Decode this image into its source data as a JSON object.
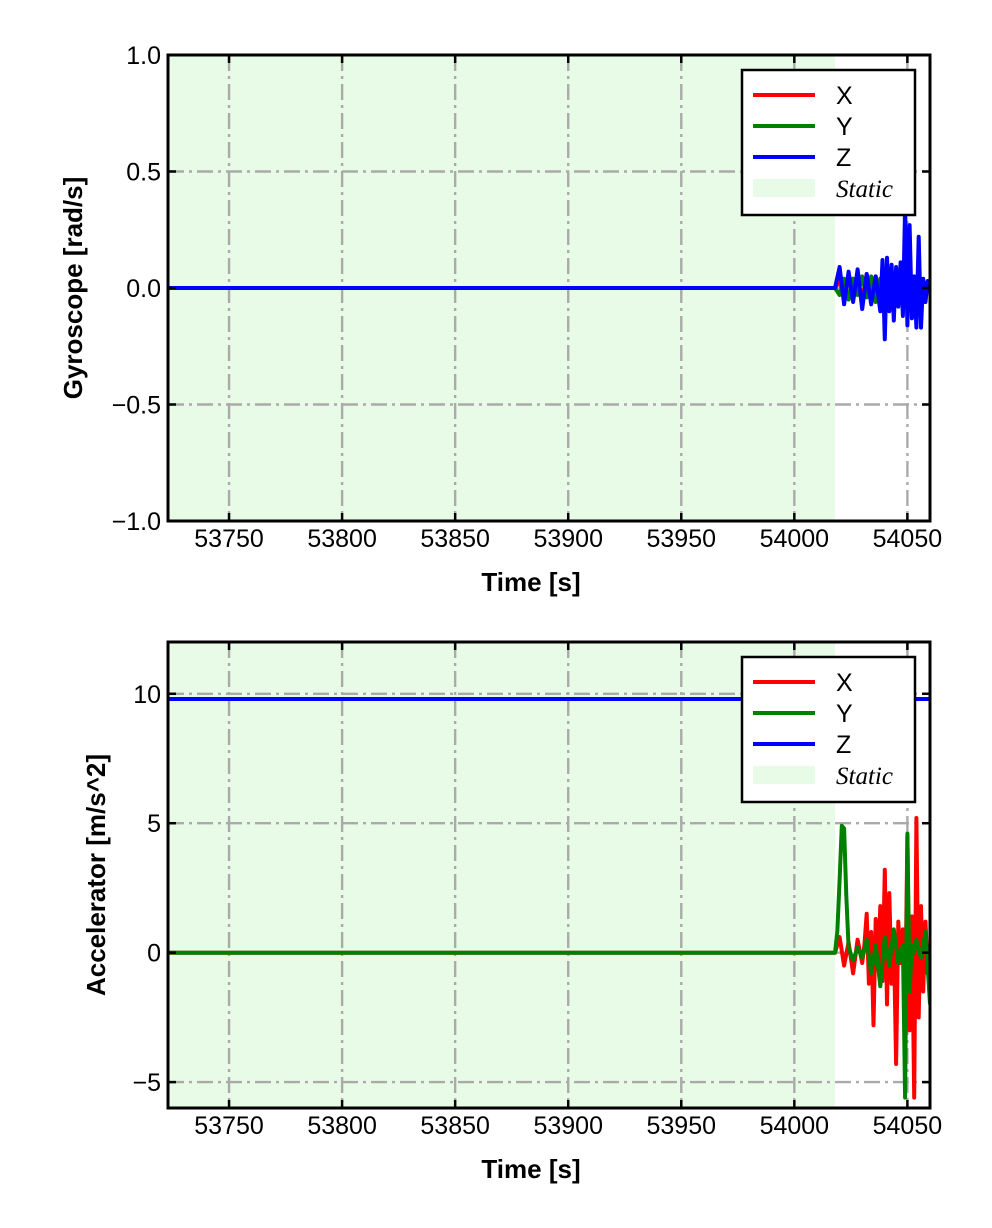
{
  "chart_data": [
    {
      "type": "line",
      "ylabel": "Gyroscope [rad/s]",
      "xlabel": "Time [s]",
      "xlim": [
        53723,
        54060
      ],
      "ylim": [
        -1.0,
        1.0
      ],
      "xticks": [
        53750,
        53800,
        53850,
        53900,
        53950,
        54000,
        54050
      ],
      "xtick_labels": [
        "53750",
        "53800",
        "53850",
        "53900",
        "53950",
        "54000",
        "54050"
      ],
      "yticks": [
        -1.0,
        -0.5,
        0.0,
        0.5,
        1.0
      ],
      "ytick_labels": [
        "−1.0",
        "−0.5",
        "0.0",
        "0.5",
        "1.0"
      ],
      "grid": true,
      "legend_position": "top-right",
      "static_region": [
        53723,
        54018
      ],
      "static_color": "#e8fbe6",
      "legend": [
        {
          "label": "X",
          "color": "#ff0000",
          "kind": "line"
        },
        {
          "label": "Y",
          "color": "#008000",
          "kind": "line"
        },
        {
          "label": "Z",
          "color": "#0000ff",
          "kind": "line"
        },
        {
          "label": "Static",
          "color": "#e8fbe6",
          "kind": "patch"
        }
      ],
      "series": [
        {
          "name": "X",
          "color": "#ff0000",
          "x": [
            53723,
            54018,
            54020,
            54022,
            54024,
            54026,
            54028,
            54030,
            54032,
            54034,
            54036,
            54038,
            54040,
            54042,
            54044,
            54046,
            54048,
            54050,
            54052,
            54054,
            54056,
            54058,
            54060
          ],
          "y": [
            0.0,
            0.0,
            0.03,
            -0.04,
            0.05,
            -0.05,
            0.04,
            -0.05,
            0.06,
            -0.04,
            0.05,
            -0.06,
            0.04,
            -0.05,
            0.06,
            -0.05,
            0.04,
            -0.04,
            0.03,
            -0.03,
            0.02,
            -0.02,
            0.0
          ]
        },
        {
          "name": "Y",
          "color": "#008000",
          "x": [
            53723,
            54018,
            54020,
            54022,
            54024,
            54026,
            54028,
            54030,
            54032,
            54034,
            54036,
            54038,
            54040,
            54042,
            54044,
            54046,
            54048,
            54050,
            54052,
            54054,
            54056,
            54058,
            54060
          ],
          "y": [
            0.0,
            0.0,
            -0.03,
            0.04,
            -0.05,
            0.04,
            -0.03,
            0.05,
            -0.04,
            0.05,
            -0.06,
            0.04,
            -0.05,
            0.05,
            -0.04,
            0.06,
            -0.05,
            0.04,
            -0.04,
            0.03,
            -0.03,
            0.02,
            0.0
          ]
        },
        {
          "name": "Z",
          "color": "#0000ff",
          "x": [
            53723,
            54018,
            54020,
            54022,
            54024,
            54026,
            54028,
            54030,
            54032,
            54034,
            54036,
            54038,
            54039,
            54040,
            54041,
            54042,
            54043,
            54044,
            54045,
            54046,
            54047,
            54048,
            54049,
            54050,
            54051,
            54052,
            54053,
            54054,
            54055,
            54056,
            54057,
            54058,
            54059,
            54060
          ],
          "y": [
            0.0,
            0.0,
            0.09,
            -0.07,
            0.07,
            -0.06,
            0.08,
            -0.09,
            0.06,
            -0.07,
            0.05,
            -0.1,
            0.12,
            -0.22,
            0.13,
            -0.1,
            0.1,
            -0.14,
            0.09,
            -0.08,
            0.11,
            -0.12,
            0.35,
            -0.16,
            0.27,
            -0.13,
            0.05,
            -0.17,
            0.22,
            -0.17,
            0.04,
            -0.06,
            0.03,
            0.0
          ]
        }
      ]
    },
    {
      "type": "line",
      "ylabel": "Accelerator [m/s^2]",
      "xlabel": "Time [s]",
      "xlim": [
        53723,
        54060
      ],
      "ylim": [
        -6.0,
        12.0
      ],
      "xticks": [
        53750,
        53800,
        53850,
        53900,
        53950,
        54000,
        54050
      ],
      "xtick_labels": [
        "53750",
        "53800",
        "53850",
        "53900",
        "53950",
        "54000",
        "54050"
      ],
      "yticks": [
        -5,
        0,
        5,
        10
      ],
      "ytick_labels": [
        "−5",
        "0",
        "5",
        "10"
      ],
      "grid": true,
      "legend_position": "top-right",
      "static_region": [
        53723,
        54018
      ],
      "static_color": "#e8fbe6",
      "legend": [
        {
          "label": "X",
          "color": "#ff0000",
          "kind": "line"
        },
        {
          "label": "Y",
          "color": "#008000",
          "kind": "line"
        },
        {
          "label": "Z",
          "color": "#0000ff",
          "kind": "line"
        },
        {
          "label": "Static",
          "color": "#e8fbe6",
          "kind": "patch"
        }
      ],
      "series": [
        {
          "name": "Z",
          "color": "#0000ff",
          "x": [
            53723,
            54060
          ],
          "y": [
            9.8,
            9.8
          ]
        },
        {
          "name": "X",
          "color": "#ff0000",
          "x": [
            53723,
            54018,
            54020,
            54022,
            54024,
            54026,
            54028,
            54030,
            54031,
            54032,
            54033,
            54034,
            54035,
            54036,
            54037,
            54038,
            54039,
            54040,
            54041,
            54042,
            54043,
            54044,
            54045,
            54046,
            54047,
            54048,
            54049,
            54050,
            54051,
            54052,
            54053,
            54054,
            54055,
            54056,
            54057,
            54058,
            54059,
            54060
          ],
          "y": [
            0.0,
            0.0,
            0.6,
            -0.5,
            0.4,
            -0.8,
            0.5,
            -0.4,
            0.3,
            1.5,
            -1.2,
            0.8,
            -2.8,
            1.3,
            -0.6,
            1.8,
            -1.1,
            3.2,
            -2.0,
            2.3,
            -1.2,
            0.7,
            -4.3,
            1.2,
            -0.4,
            0.9,
            -2.3,
            4.5,
            -3.0,
            1.4,
            -5.6,
            5.2,
            -2.5,
            1.8,
            -1.5,
            1.2,
            -0.8,
            -0.5
          ]
        },
        {
          "name": "Y",
          "color": "#008000",
          "x": [
            53723,
            54018,
            54019,
            54020,
            54021,
            54022,
            54023,
            54024,
            54026,
            54028,
            54030,
            54032,
            54034,
            54036,
            54038,
            54040,
            54042,
            54044,
            54046,
            54048,
            54049,
            54050,
            54051,
            54052,
            54053,
            54054,
            54056,
            54058,
            54060
          ],
          "y": [
            0.0,
            0.0,
            0.8,
            2.8,
            4.9,
            4.8,
            2.2,
            0.2,
            -0.3,
            0.2,
            -0.2,
            0.5,
            -0.8,
            0.3,
            -1.3,
            0.6,
            -0.5,
            0.9,
            -0.4,
            0.3,
            -5.6,
            4.6,
            -1.5,
            0.3,
            0.0,
            0.5,
            -0.2,
            0.8,
            -2.0
          ]
        }
      ]
    }
  ]
}
